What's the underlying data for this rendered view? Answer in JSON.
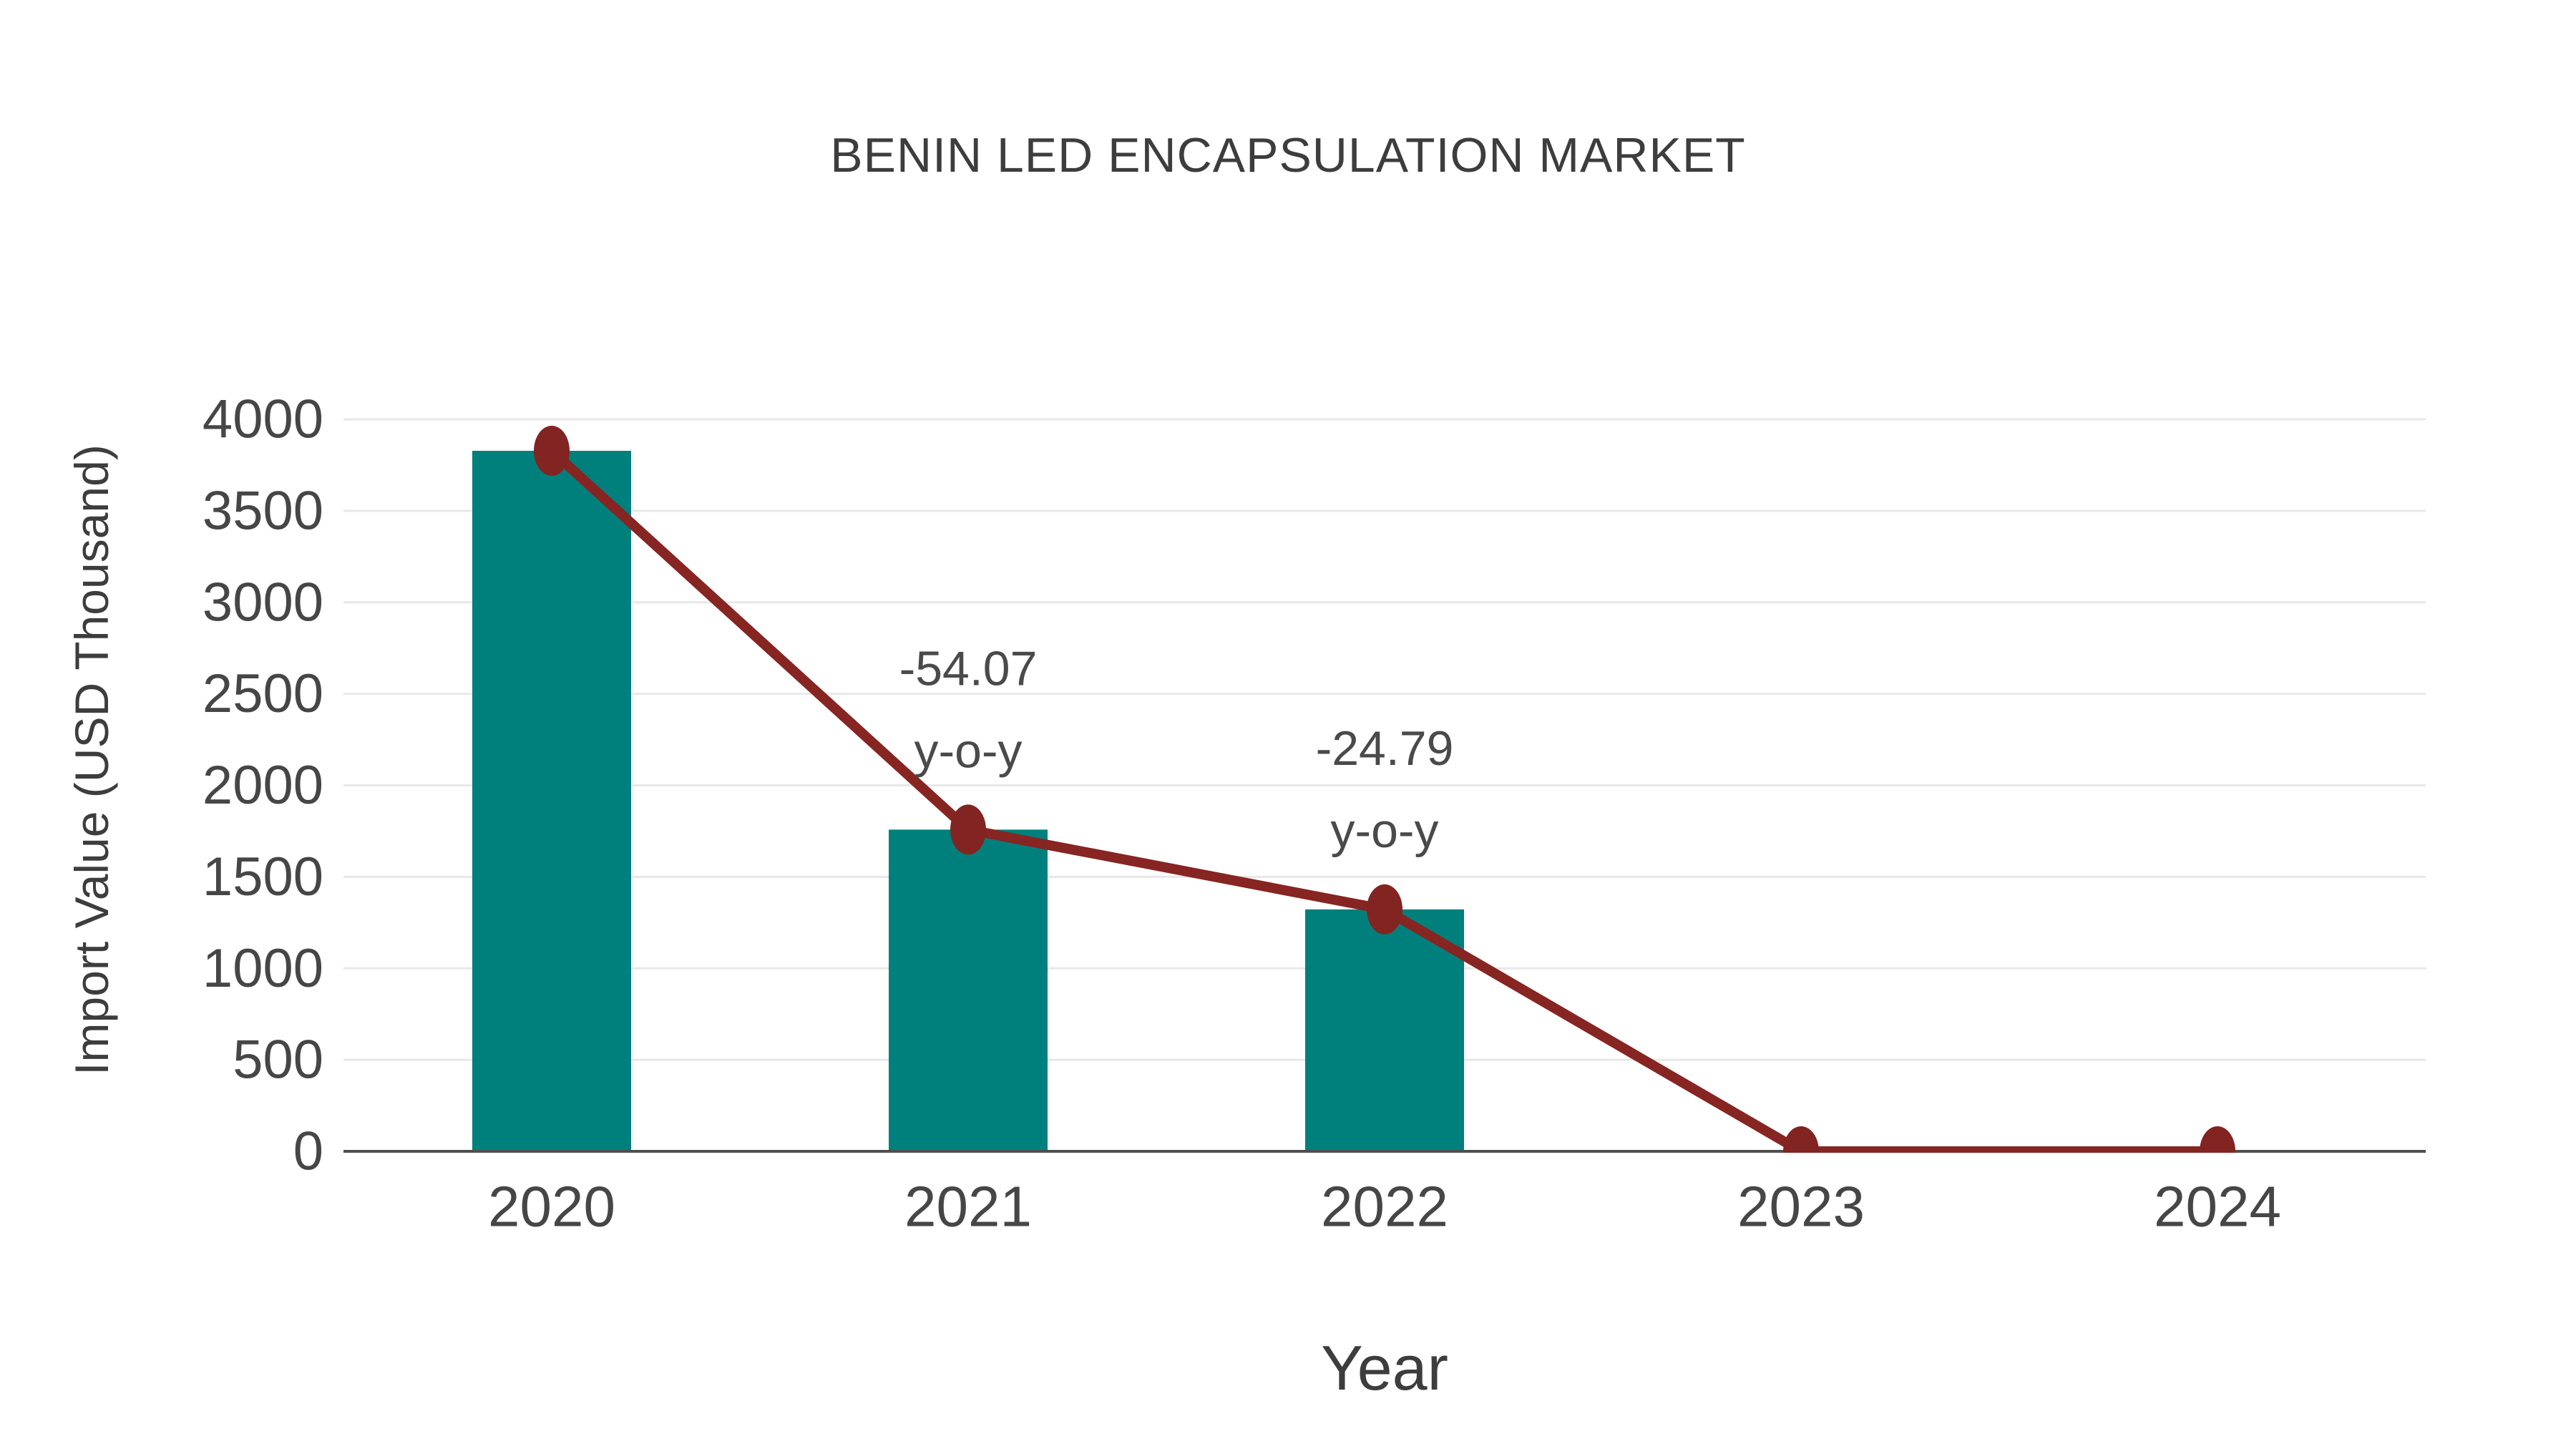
{
  "chart_data": {
    "type": "bar",
    "title": "BENIN LED ENCAPSULATION MARKET",
    "xlabel": "Year",
    "ylabel": "Import Value (USD Thousand)",
    "categories": [
      "2020",
      "2021",
      "2022",
      "2023",
      "2024"
    ],
    "series": [
      {
        "name": "Import Value bars",
        "type": "bar",
        "values": [
          3828,
          1758,
          1322,
          0,
          0
        ]
      },
      {
        "name": "Import Value trend line",
        "type": "line",
        "values": [
          3828,
          1758,
          1322,
          0,
          0
        ]
      }
    ],
    "annotations": [
      {
        "category": "2021",
        "lines": [
          "-54.07",
          "y-o-y"
        ]
      },
      {
        "category": "2022",
        "lines": [
          "-24.79",
          "y-o-y"
        ]
      }
    ],
    "ylim": [
      0,
      4000
    ],
    "yticks": [
      0,
      500,
      1000,
      1500,
      2000,
      2500,
      3000,
      3500,
      4000
    ],
    "grid": true,
    "legend_position": "none",
    "colors": {
      "bar": "#00807d",
      "line": "#862522",
      "marker": "#822421",
      "grid": "#e8e8e8",
      "axis": "#4f4f4f",
      "title_text": "#3d3d3d",
      "tick_text": "#464646",
      "annotation_text": "#4a4a4a"
    }
  }
}
